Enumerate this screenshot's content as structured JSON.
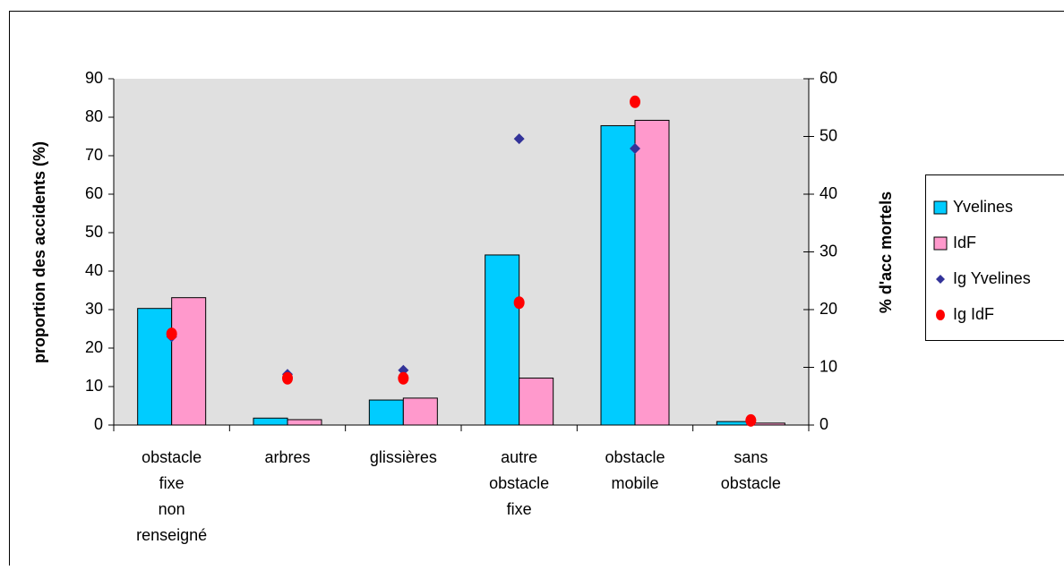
{
  "chart_data": {
    "type": "bar",
    "y_label": "proportion des accidents (%)",
    "y2_label": "% d'acc mortels",
    "categories": [
      [
        "obstacle",
        "fixe",
        "non",
        "renseigné"
      ],
      [
        "arbres"
      ],
      [
        "glissières"
      ],
      [
        "autre",
        "obstacle",
        "fixe"
      ],
      [
        "obstacle",
        "mobile"
      ],
      [
        "sans",
        "obstacle"
      ]
    ],
    "series": [
      {
        "name": "Yvelines",
        "color": "#00ccff",
        "type": "bar",
        "values": [
          30.3,
          1.8,
          6.5,
          44.2,
          77.8,
          0.9
        ]
      },
      {
        "name": "IdF",
        "color": "#ff99cc",
        "type": "bar",
        "values": [
          33.1,
          1.4,
          7.0,
          12.2,
          79.2,
          0.5
        ]
      },
      {
        "name": "Ig Yvelines",
        "color": "#333399",
        "type": "scatter",
        "marker": "diamond",
        "axis": "y2",
        "values": [
          15.3,
          8.8,
          9.5,
          49.6,
          47.9,
          0.8
        ]
      },
      {
        "name": "Ig IdF",
        "color": "#ff0000",
        "type": "scatter",
        "marker": "circle",
        "axis": "y2",
        "values": [
          15.8,
          8.1,
          8.1,
          21.2,
          56.0,
          0.8
        ]
      }
    ],
    "ylim": [
      0,
      90
    ],
    "yticks": [
      0,
      10,
      20,
      30,
      40,
      50,
      60,
      70,
      80,
      90
    ],
    "y2lim": [
      0,
      60
    ],
    "y2ticks": [
      0,
      10,
      20,
      30,
      40,
      50,
      60
    ],
    "legend": "right"
  }
}
